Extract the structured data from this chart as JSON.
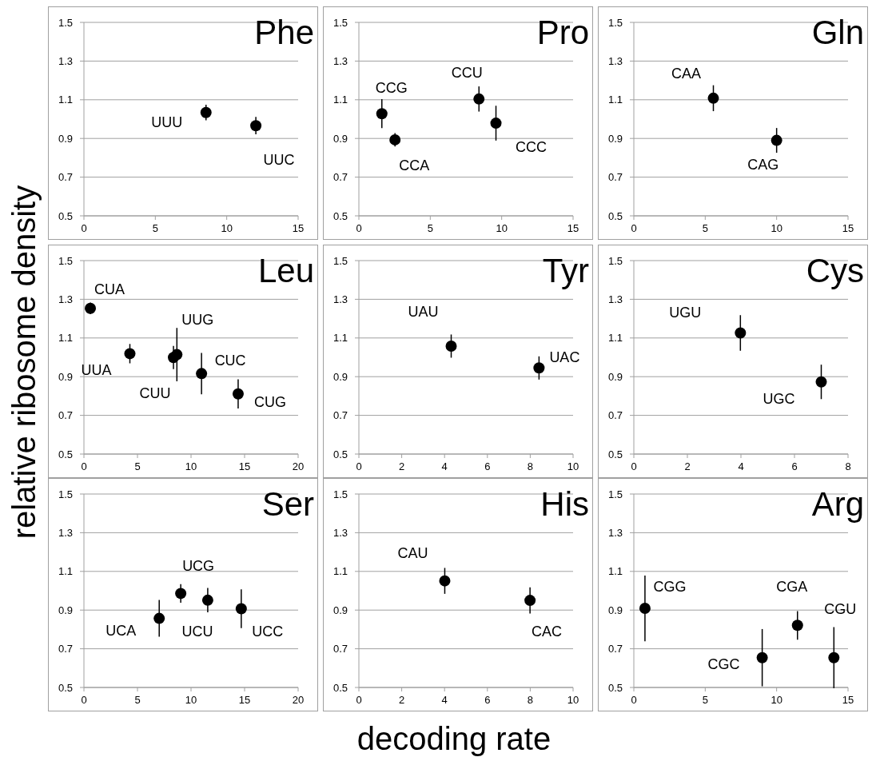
{
  "chart_data": [
    {
      "type": "scatter",
      "title": "Phe",
      "x": [
        8.55,
        12.04
      ],
      "values": [
        1.034,
        0.966
      ],
      "errors": [
        0.04,
        0.045
      ],
      "color": "#000000",
      "marker": "circle",
      "grid": "y",
      "xlim": [
        0,
        15
      ],
      "xticks": [
        0,
        5,
        10,
        15
      ],
      "ylim": [
        0.5,
        1.5
      ],
      "yticks": [
        0.5,
        0.7,
        0.9,
        1.1,
        1.3,
        1.5
      ],
      "annotations": [
        {
          "text": "UUU",
          "x": 8.55,
          "y": 1.034
        },
        {
          "text": "UUC",
          "x": 12.04,
          "y": 0.966
        }
      ]
    },
    {
      "type": "scatter",
      "title": "Pro",
      "x": [
        1.61,
        2.53,
        8.41,
        9.6
      ],
      "values": [
        1.028,
        0.893,
        1.104,
        0.979
      ],
      "errors": [
        0.075,
        0.035,
        0.065,
        0.09
      ],
      "color": "#000000",
      "marker": "circle",
      "grid": "y",
      "xlim": [
        0,
        15
      ],
      "xticks": [
        0,
        5,
        10,
        15
      ],
      "ylim": [
        0.5,
        1.5
      ],
      "yticks": [
        0.5,
        0.7,
        0.9,
        1.1,
        1.3,
        1.5
      ],
      "annotations": [
        {
          "text": "CCG",
          "x": 1.61,
          "y": 1.028
        },
        {
          "text": "CCA",
          "x": 2.53,
          "y": 0.893
        },
        {
          "text": "CCU",
          "x": 8.41,
          "y": 1.104
        },
        {
          "text": "CCC",
          "x": 9.6,
          "y": 0.979
        }
      ]
    },
    {
      "type": "scatter",
      "title": "Gln",
      "x": [
        5.57,
        10.0
      ],
      "values": [
        1.108,
        0.89
      ],
      "errors": [
        0.067,
        0.064
      ],
      "color": "#000000",
      "marker": "circle",
      "grid": "y",
      "xlim": [
        0,
        15
      ],
      "xticks": [
        0,
        5,
        10,
        15
      ],
      "ylim": [
        0.5,
        1.5
      ],
      "yticks": [
        0.5,
        0.7,
        0.9,
        1.1,
        1.3,
        1.5
      ],
      "annotations": [
        {
          "text": "CAA",
          "x": 5.57,
          "y": 1.108
        },
        {
          "text": "CAG",
          "x": 10.0,
          "y": 0.89
        }
      ]
    },
    {
      "type": "scatter",
      "title": "Leu",
      "ylabel": "relative ribosome density",
      "x": [
        0.6,
        4.29,
        8.36,
        8.68,
        10.98,
        14.4
      ],
      "values": [
        1.253,
        1.019,
        0.999,
        1.014,
        0.916,
        0.811
      ],
      "errors": [
        0.03,
        0.05,
        0.06,
        0.138,
        0.107,
        0.075
      ],
      "color": "#000000",
      "marker": "circle",
      "grid": "y",
      "xlim": [
        0,
        20
      ],
      "xticks": [
        0,
        5,
        10,
        15,
        20
      ],
      "ylim": [
        0.5,
        1.5
      ],
      "yticks": [
        0.5,
        0.7,
        0.9,
        1.1,
        1.3,
        1.5
      ],
      "annotations": [
        {
          "text": "CUA",
          "x": 0.6,
          "y": 1.253
        },
        {
          "text": "UUA",
          "x": 4.29,
          "y": 1.019
        },
        {
          "text": "CUU",
          "x": 8.36,
          "y": 0.999
        },
        {
          "text": "UUG",
          "x": 8.68,
          "y": 1.014
        },
        {
          "text": "CUC",
          "x": 10.98,
          "y": 0.916
        },
        {
          "text": "CUG",
          "x": 14.4,
          "y": 0.811
        }
      ]
    },
    {
      "type": "scatter",
      "title": "Tyr",
      "x": [
        4.31,
        8.41
      ],
      "values": [
        1.058,
        0.945
      ],
      "errors": [
        0.06,
        0.06
      ],
      "color": "#000000",
      "marker": "circle",
      "grid": "y",
      "xlim": [
        0,
        10
      ],
      "xticks": [
        0,
        2,
        4,
        6,
        8,
        10
      ],
      "ylim": [
        0.5,
        1.5
      ],
      "yticks": [
        0.5,
        0.7,
        0.9,
        1.1,
        1.3,
        1.5
      ],
      "annotations": [
        {
          "text": "UAU",
          "x": 4.31,
          "y": 1.058
        },
        {
          "text": "UAC",
          "x": 8.41,
          "y": 0.945
        }
      ]
    },
    {
      "type": "scatter",
      "title": "Cys",
      "x": [
        3.98,
        7.0
      ],
      "values": [
        1.126,
        0.873
      ],
      "errors": [
        0.092,
        0.089
      ],
      "color": "#000000",
      "marker": "circle",
      "grid": "y",
      "xlim": [
        0,
        8
      ],
      "xticks": [
        0,
        2,
        4,
        6,
        8
      ],
      "ylim": [
        0.5,
        1.5
      ],
      "yticks": [
        0.5,
        0.7,
        0.9,
        1.1,
        1.3,
        1.5
      ],
      "annotations": [
        {
          "text": "UGU",
          "x": 3.98,
          "y": 1.126
        },
        {
          "text": "UGC",
          "x": 7.0,
          "y": 0.873
        }
      ]
    },
    {
      "type": "scatter",
      "title": "Ser",
      "x": [
        7.03,
        9.04,
        11.56,
        14.69
      ],
      "values": [
        0.857,
        0.986,
        0.951,
        0.907
      ],
      "errors": [
        0.095,
        0.048,
        0.063,
        0.1
      ],
      "color": "#000000",
      "marker": "circle",
      "grid": "y",
      "xlim": [
        0,
        20
      ],
      "xticks": [
        0,
        5,
        10,
        15,
        20
      ],
      "ylim": [
        0.5,
        1.5
      ],
      "yticks": [
        0.5,
        0.7,
        0.9,
        1.1,
        1.3,
        1.5
      ],
      "annotations": [
        {
          "text": "UCA",
          "x": 7.03,
          "y": 0.857
        },
        {
          "text": "UCG",
          "x": 9.04,
          "y": 0.986
        },
        {
          "text": "UCU",
          "x": 11.56,
          "y": 0.951
        },
        {
          "text": "UCC",
          "x": 14.69,
          "y": 0.907
        }
      ]
    },
    {
      "type": "scatter",
      "title": "His",
      "xlabel": "decoding rate",
      "x": [
        4.01,
        7.99
      ],
      "values": [
        1.051,
        0.95
      ],
      "errors": [
        0.067,
        0.068
      ],
      "color": "#000000",
      "marker": "circle",
      "grid": "y",
      "xlim": [
        0,
        10
      ],
      "xticks": [
        0,
        2,
        4,
        6,
        8,
        10
      ],
      "ylim": [
        0.5,
        1.5
      ],
      "yticks": [
        0.5,
        0.7,
        0.9,
        1.1,
        1.3,
        1.5
      ],
      "annotations": [
        {
          "text": "CAU",
          "x": 4.01,
          "y": 1.051
        },
        {
          "text": "CAC",
          "x": 7.99,
          "y": 0.95
        }
      ]
    },
    {
      "type": "scatter",
      "title": "Arg",
      "x": [
        0.78,
        8.99,
        11.46,
        14.01
      ],
      "values": [
        0.909,
        0.654,
        0.821,
        0.654
      ],
      "errors": [
        0.17,
        0.148,
        0.074,
        0.158
      ],
      "color": "#000000",
      "marker": "circle",
      "grid": "y",
      "xlim": [
        0,
        15
      ],
      "xticks": [
        0,
        5,
        10,
        15
      ],
      "ylim": [
        0.5,
        1.5
      ],
      "yticks": [
        0.5,
        0.7,
        0.9,
        1.1,
        1.3,
        1.5
      ],
      "annotations": [
        {
          "text": "CGG",
          "x": 0.78,
          "y": 0.909
        },
        {
          "text": "CGC",
          "x": 8.99,
          "y": 0.654
        },
        {
          "text": "CGA",
          "x": 11.46,
          "y": 0.821
        },
        {
          "text": "CGU",
          "x": 14.01,
          "y": 0.654
        }
      ]
    }
  ]
}
